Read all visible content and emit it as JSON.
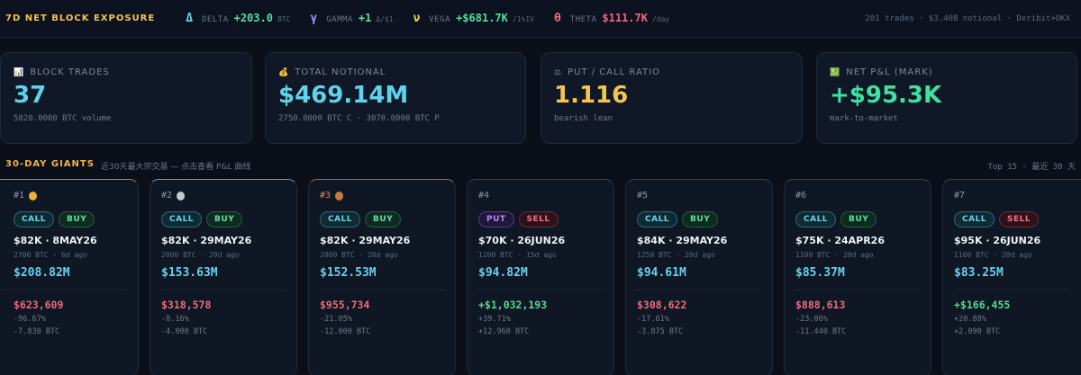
{
  "header": {
    "title": "7D NET BLOCK EXPOSURE",
    "greeks": [
      {
        "symbol": "Δ",
        "label": "DELTA",
        "value": "+203.0",
        "unit": "BTC",
        "symbol_color": "#5fd3ea",
        "value_color": "#52e0a0"
      },
      {
        "symbol": "γ",
        "label": "GAMMA",
        "value": "+1",
        "unit": "Δ/$1",
        "symbol_color": "#a98cf2",
        "value_color": "#52e0a0"
      },
      {
        "symbol": "ν",
        "label": "VEGA",
        "value": "+$681.7K",
        "unit": "/1%IV",
        "symbol_color": "#f3c64c",
        "value_color": "#52e0a0"
      },
      {
        "symbol": "θ",
        "label": "THETA",
        "value": "$111.7K",
        "unit": "/day",
        "symbol_color": "#f06a7e",
        "value_color": "#f06a7e"
      }
    ],
    "meta": "201 trades · $3.40B notional · Deribit+OKX"
  },
  "stats": [
    {
      "icon": "📊",
      "label": "BLOCK TRADES",
      "value": "37",
      "sub": "5820.0000 BTC volume",
      "color": "#5fd3ea"
    },
    {
      "icon": "💰",
      "label": "TOTAL NOTIONAL",
      "value": "$469.14M",
      "sub": "2750.0000 BTC C · 3070.0000 BTC P",
      "color": "#5fd3ea"
    },
    {
      "icon": "⚖",
      "label": "PUT / CALL RATIO",
      "value": "1.116",
      "sub": "bearish lean",
      "color": "#f3c64c"
    },
    {
      "icon": "💹",
      "label": "NET P&L (MARK)",
      "value": "+$95.3K",
      "sub": "mark-to-market",
      "color": "#3fe0a0"
    }
  ],
  "section": {
    "title": "30-DAY GIANTS",
    "subtitle": "近30天最大宗交易 — 点击查看 P&L 曲线",
    "meta": "Top 15 · 最近 30 天"
  },
  "trades": [
    {
      "rank": "#1",
      "medal": "gold",
      "type": "CALL",
      "side": "BUY",
      "strike": "$82K · 8MAY26",
      "size": "2700 BTC · 6d ago",
      "notional": "$208.82M",
      "pnl": "$623,609",
      "pnl_sign": "neg",
      "pct": "-96.67%",
      "btc": "-7.830 BTC"
    },
    {
      "rank": "#2",
      "medal": "silver",
      "type": "CALL",
      "side": "BUY",
      "strike": "$82K · 29MAY26",
      "size": "2000 BTC · 20d ago",
      "notional": "$153.63M",
      "pnl": "$318,578",
      "pnl_sign": "neg",
      "pct": "-8.16%",
      "btc": "-4.000 BTC"
    },
    {
      "rank": "#3",
      "medal": "bronze",
      "type": "CALL",
      "side": "BUY",
      "strike": "$82K · 29MAY26",
      "size": "2000 BTC · 20d ago",
      "notional": "$152.53M",
      "pnl": "$955,734",
      "pnl_sign": "neg",
      "pct": "-21.05%",
      "btc": "-12.000 BTC"
    },
    {
      "rank": "#4",
      "medal": "",
      "type": "PUT",
      "side": "SELL",
      "strike": "$70K · 26JUN26",
      "size": "1200 BTC · 15d ago",
      "notional": "$94.82M",
      "pnl": "+$1,032,193",
      "pnl_sign": "pos",
      "pct": "+39.71%",
      "btc": "+12.960 BTC"
    },
    {
      "rank": "#5",
      "medal": "",
      "type": "CALL",
      "side": "BUY",
      "strike": "$84K · 29MAY26",
      "size": "1250 BTC · 20d ago",
      "notional": "$94.61M",
      "pnl": "$308,622",
      "pnl_sign": "neg",
      "pct": "-17.61%",
      "btc": "-3.875 BTC"
    },
    {
      "rank": "#6",
      "medal": "",
      "type": "CALL",
      "side": "BUY",
      "strike": "$75K · 24APR26",
      "size": "1100 BTC · 20d ago",
      "notional": "$85.37M",
      "pnl": "$888,613",
      "pnl_sign": "neg",
      "pct": "-23.06%",
      "btc": "-11.440 BTC"
    },
    {
      "rank": "#7",
      "medal": "",
      "type": "CALL",
      "side": "SELL",
      "strike": "$95K · 26JUN26",
      "size": "1100 BTC · 20d ago",
      "notional": "$83.25M",
      "pnl": "+$166,455",
      "pnl_sign": "pos",
      "pct": "+20.88%",
      "btc": "+2.090 BTC"
    }
  ]
}
